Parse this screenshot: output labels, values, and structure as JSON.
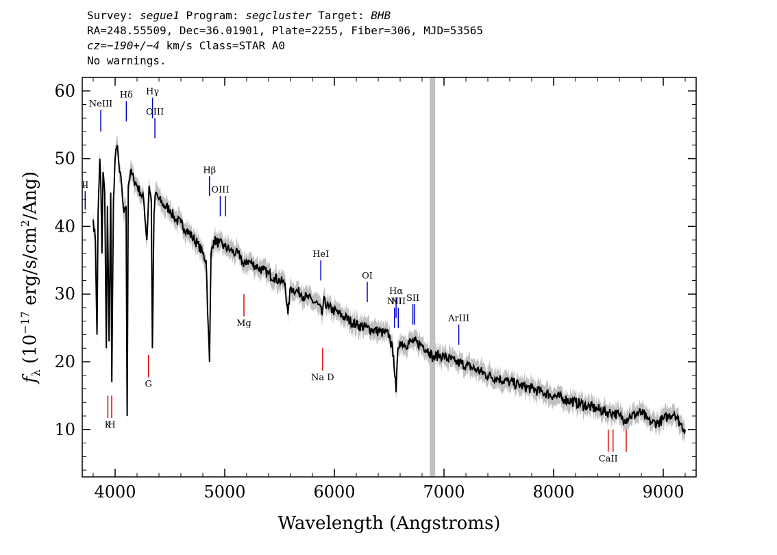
{
  "header": {
    "line1": {
      "survey_label": "Survey: ",
      "survey": "segue1",
      "program_label": " Program: ",
      "program": "segcluster",
      "target_label": " Target: ",
      "target": "BHB"
    },
    "line2": "RA=248.55509, Dec=36.01901, Plate=2255, Fiber=306, MJD=53565",
    "line3": {
      "cz": "cz=−190+/−4",
      "rest": " km/s Class=STAR A0"
    },
    "line4": "No warnings."
  },
  "colors": {
    "spectrum": "#000000",
    "error": "#c0c0c0",
    "emission": "#0000cc",
    "absorption": "#dd0000",
    "telluric_band": "#c0c0c0"
  },
  "chart_data": {
    "type": "line",
    "xlabel": "Wavelength (Angstroms)",
    "ylabel": "fλ (10⁻¹⁷ erg/s/cm²/Ang)",
    "xlim": [
      3700,
      9300
    ],
    "ylim": [
      3,
      62
    ],
    "xticks": [
      4000,
      5000,
      6000,
      7000,
      8000,
      9000
    ],
    "yticks": [
      10,
      20,
      30,
      40,
      50,
      60
    ],
    "telluric_band": [
      6870,
      6920
    ],
    "series": [
      {
        "kind": "spectrum",
        "x": [
          3800,
          3820,
          3835,
          3845,
          3860,
          3870,
          3880,
          3890,
          3905,
          3920,
          3930,
          3945,
          3960,
          3970,
          3985,
          4000,
          4020,
          4040,
          4060,
          4080,
          4100,
          4110,
          4120,
          4140,
          4170,
          4200,
          4230,
          4260,
          4290,
          4310,
          4330,
          4340,
          4355,
          4370,
          4400,
          4450,
          4500,
          4550,
          4600,
          4650,
          4700,
          4750,
          4800,
          4830,
          4850,
          4861,
          4875,
          4900,
          4950,
          5000,
          5050,
          5100,
          5150,
          5172,
          5200,
          5250,
          5300,
          5350,
          5400,
          5450,
          5500,
          5550,
          5577,
          5600,
          5650,
          5700,
          5750,
          5800,
          5850,
          5890,
          5900,
          5950,
          6000,
          6100,
          6200,
          6300,
          6400,
          6500,
          6540,
          6563,
          6580,
          6600,
          6650,
          6700,
          6800,
          6870,
          6900,
          6950,
          7000,
          7100,
          7200,
          7300,
          7400,
          7500,
          7600,
          7700,
          7800,
          7900,
          8000,
          8100,
          8200,
          8300,
          8400,
          8500,
          8550,
          8600,
          8650,
          8700,
          8800,
          8850,
          8900,
          8950,
          9000,
          9050,
          9100,
          9150,
          9200
        ],
        "y": [
          41,
          38,
          24,
          42,
          50,
          46,
          36,
          48,
          45,
          22,
          43,
          23,
          45,
          17,
          44,
          50,
          52,
          48,
          46,
          42,
          43,
          12,
          46,
          48,
          47,
          46,
          45,
          44,
          38,
          46,
          44,
          22,
          42,
          45,
          44,
          43,
          42.5,
          41,
          40.5,
          39.5,
          38.5,
          37.5,
          36,
          35,
          25,
          20,
          36,
          38,
          37.5,
          37,
          36.5,
          36,
          35.5,
          34,
          35,
          34.5,
          34,
          33.5,
          33,
          32.5,
          32,
          31.5,
          27,
          31,
          30.5,
          30,
          29.5,
          29,
          28.5,
          27,
          29,
          28,
          27.5,
          26.5,
          25.5,
          25,
          24.5,
          24,
          21,
          15.5,
          22,
          23,
          22.5,
          23,
          22.5,
          21.5,
          20.5,
          21,
          20.8,
          20,
          19.5,
          18.8,
          18,
          17.5,
          17,
          16.5,
          16,
          15.5,
          15,
          14.5,
          14,
          13.5,
          13,
          12.5,
          12.5,
          12,
          11.5,
          12,
          12.5,
          11.5,
          11,
          11,
          11.5,
          12,
          12.5,
          11,
          10
        ]
      }
    ],
    "emission_lines": [
      {
        "label": "NeIII",
        "x": 3869,
        "y1": 54,
        "y2": 57.2
      },
      {
        "label": "Hδ",
        "x": 4102,
        "y1": 55.5,
        "y2": 58.5
      },
      {
        "label": "Hγ",
        "x": 4341,
        "y1": 56,
        "y2": 59
      },
      {
        "label": "OIII",
        "x": 4363,
        "y1": 53,
        "y2": 56
      },
      {
        "label": "II",
        "x": 3727,
        "y1": 42.5,
        "y2": 45.2
      },
      {
        "label": "Hβ",
        "x": 4861,
        "y1": 44.5,
        "y2": 47.4
      },
      {
        "label": "OIII",
        "x": 4959,
        "y1": 41.5,
        "y2": 44.5
      },
      {
        "label": "",
        "x": 5007,
        "y1": 41.5,
        "y2": 44.5
      },
      {
        "label": "HeI",
        "x": 5876,
        "y1": 32,
        "y2": 35
      },
      {
        "label": "OI",
        "x": 6300,
        "y1": 28.8,
        "y2": 31.8
      },
      {
        "label": "NII",
        "x": 6548,
        "y1": 25,
        "y2": 28
      },
      {
        "label": "Hα",
        "x": 6563,
        "y1": 26.5,
        "y2": 29.5
      },
      {
        "label": "NII",
        "x": 6583,
        "y1": 25,
        "y2": 28
      },
      {
        "label": "SII",
        "x": 6716,
        "y1": 25.5,
        "y2": 28.5
      },
      {
        "label": "",
        "x": 6731,
        "y1": 25.5,
        "y2": 28.5
      },
      {
        "label": "ArIII",
        "x": 7135,
        "y1": 22.5,
        "y2": 25.5
      }
    ],
    "absorption_lines": [
      {
        "label": "K",
        "x": 3934,
        "y1": 11.7,
        "y2": 15
      },
      {
        "label": "H",
        "x": 3969,
        "y1": 11.7,
        "y2": 15
      },
      {
        "label": "G",
        "x": 4304,
        "y1": 17.7,
        "y2": 21
      },
      {
        "label": "Mg",
        "x": 5175,
        "y1": 26.7,
        "y2": 30
      },
      {
        "label": "Na D",
        "x": 5893,
        "y1": 18.7,
        "y2": 22
      },
      {
        "label": "CaII",
        "x": 8498,
        "y1": 6.7,
        "y2": 10
      },
      {
        "label": "",
        "x": 8542,
        "y1": 6.7,
        "y2": 10
      },
      {
        "label": "",
        "x": 8662,
        "y1": 6.7,
        "y2": 10
      }
    ]
  }
}
